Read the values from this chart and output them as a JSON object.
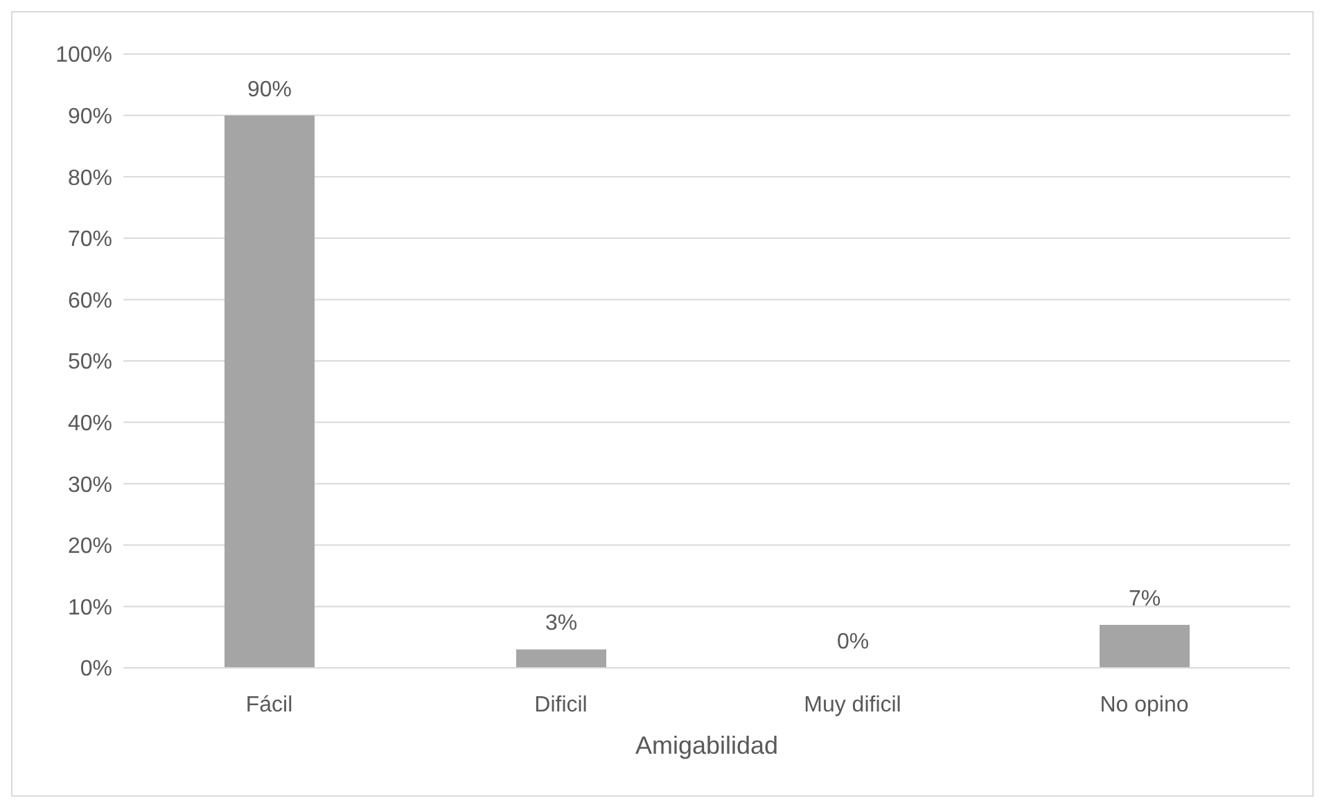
{
  "chart_data": {
    "type": "bar",
    "xlabel": "Amigabilidad",
    "categories": [
      "Fácil",
      "Dificil",
      "Muy dificil",
      "No opino"
    ],
    "values": [
      90,
      3,
      0,
      7
    ],
    "value_labels": [
      "90%",
      "3%",
      "0%",
      "7%"
    ],
    "color": "#a5a5a5",
    "ylim": [
      0,
      100
    ],
    "yticks": [
      {
        "value": 0,
        "label": "0%"
      },
      {
        "value": 10,
        "label": "10%"
      },
      {
        "value": 20,
        "label": "20%"
      },
      {
        "value": 30,
        "label": "30%"
      },
      {
        "value": 40,
        "label": "40%"
      },
      {
        "value": 50,
        "label": "50%"
      },
      {
        "value": 60,
        "label": "60%"
      },
      {
        "value": 70,
        "label": "70%"
      },
      {
        "value": 80,
        "label": "80%"
      },
      {
        "value": 90,
        "label": "90%"
      },
      {
        "value": 100,
        "label": "100%"
      }
    ],
    "grid": "y"
  }
}
